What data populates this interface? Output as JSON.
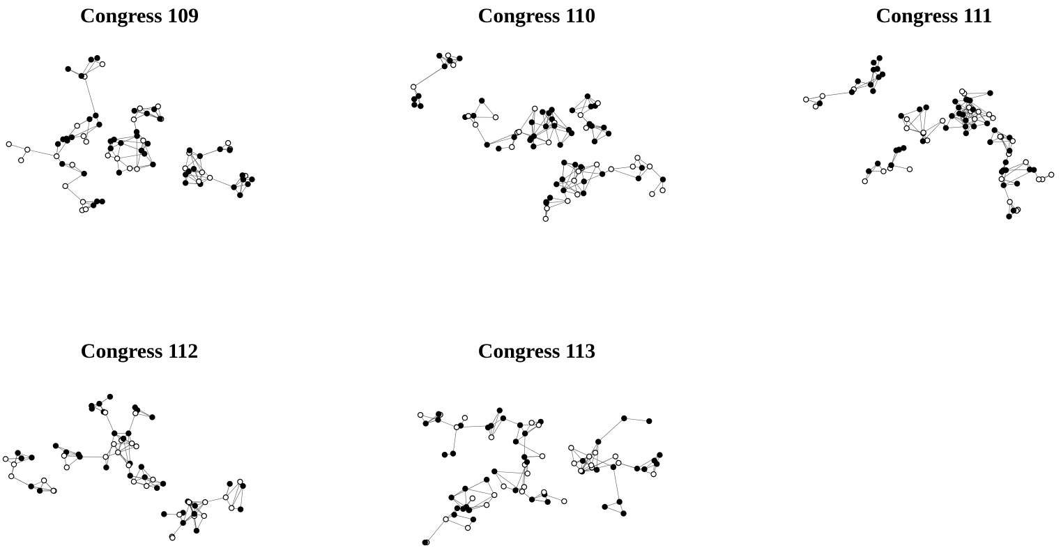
{
  "panels": [
    {
      "title": "Congress 109"
    },
    {
      "title": "Congress 110"
    },
    {
      "title": "Congress 111"
    },
    {
      "title": "Congress 112"
    },
    {
      "title": "Congress 113"
    }
  ]
}
